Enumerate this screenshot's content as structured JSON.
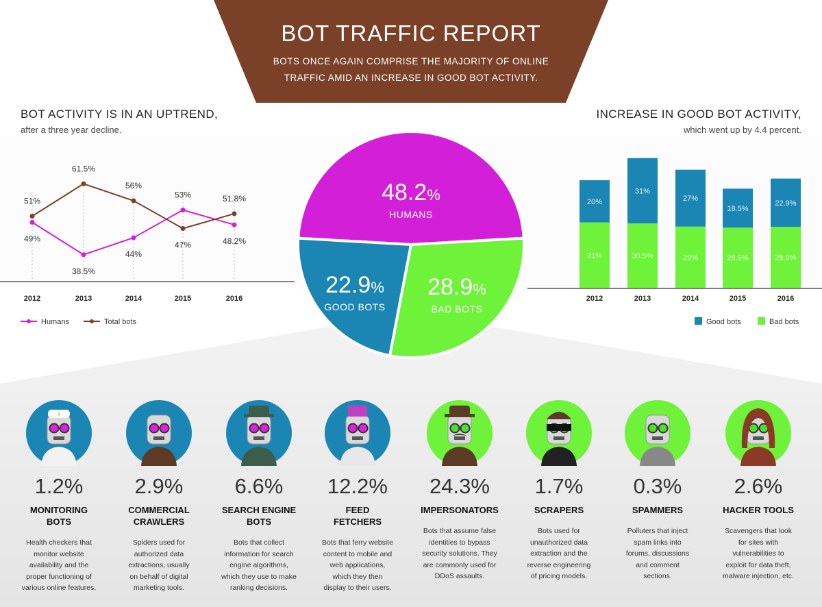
{
  "banner": {
    "title": "BOT TRAFFIC REPORT",
    "subtitle_line1": "BOTS ONCE AGAIN COMPRISE THE MAJORITY OF ONLINE",
    "subtitle_line2": "TRAFFIC AMID AN INCREASE IN GOOD BOT ACTIVITY.",
    "color": "#7a4128"
  },
  "left_section": {
    "heading": "BOT ACTIVITY IS IN AN UPTREND,",
    "subheading": "after a three year decline."
  },
  "right_section": {
    "heading": "INCREASE IN GOOD BOT ACTIVITY,",
    "subheading": "which went up by 4.4 percent."
  },
  "colors": {
    "humans": "#d41fd8",
    "total_bots": "#7b3f2c",
    "good_bots": "#1b86b4",
    "bad_bots": "#6ef23a",
    "brown": "#7a4128"
  },
  "chart_data": [
    {
      "type": "line",
      "x": [
        "2012",
        "2013",
        "2014",
        "2015",
        "2016"
      ],
      "ylim": [
        30,
        70
      ],
      "series": [
        {
          "name": "Humans",
          "values": [
            49,
            38.5,
            44,
            53,
            48.2
          ],
          "labels": [
            "49%",
            "38.5%",
            "44%",
            "53%",
            "48.2%"
          ],
          "color": "#d41fd8"
        },
        {
          "name": "Total bots",
          "values": [
            51,
            61.5,
            56,
            47,
            51.8
          ],
          "labels": [
            "51%",
            "61.5%",
            "56%",
            "47%",
            "51.8%"
          ],
          "color": "#7b3f2c"
        }
      ],
      "legend_placement": "bottom-left"
    },
    {
      "type": "pie",
      "slices": [
        {
          "label": "HUMANS",
          "value": 48.2,
          "display": "48.2",
          "color": "#d41fd8"
        },
        {
          "label": "BAD BOTS",
          "value": 28.9,
          "display": "28.9",
          "color": "#6ef23a"
        },
        {
          "label": "GOOD BOTS",
          "value": 22.9,
          "display": "22.9",
          "color": "#1b86b4"
        }
      ],
      "unit": "%"
    },
    {
      "type": "bar",
      "stacked": true,
      "categories": [
        "2012",
        "2013",
        "2014",
        "2015",
        "2016"
      ],
      "ylim": [
        0,
        65
      ],
      "series": [
        {
          "name": "Bad bots",
          "values": [
            31,
            30.5,
            29,
            28.5,
            28.9
          ],
          "labels": [
            "31%",
            "30.5%",
            "29%",
            "28.5%",
            "28.9%"
          ],
          "color": "#6ef23a"
        },
        {
          "name": "Good bots",
          "values": [
            20,
            31,
            27,
            18.5,
            22.9
          ],
          "labels": [
            "20%",
            "31%",
            "27%",
            "18.5%",
            "22.9%"
          ],
          "color": "#1b86b4"
        }
      ],
      "legend_placement": "bottom-right"
    }
  ],
  "categories": [
    {
      "pct": "1.2%",
      "name_line1": "MONITORING",
      "name_line2": "BOTS",
      "desc": [
        "Health checkers that",
        "monitor website",
        "availability and the",
        "proper functioning of",
        "various online features."
      ],
      "circle_color": "#1b86b4",
      "icon": "doctor-robot-icon"
    },
    {
      "pct": "2.9%",
      "name_line1": "COMMERCIAL",
      "name_line2": "CRAWLERS",
      "desc": [
        "Spiders used for",
        "authorized data",
        "extractions, usually",
        "on behalf of digital",
        "marketing tools."
      ],
      "circle_color": "#1b86b4",
      "icon": "puppet-robot-icon"
    },
    {
      "pct": "6.6%",
      "name_line1": "SEARCH ENGINE",
      "name_line2": "BOTS",
      "desc": [
        "Bots that collect",
        "information for search",
        "engine algorithms,",
        "which they use to make",
        "ranking decisions."
      ],
      "circle_color": "#1b86b4",
      "icon": "detective-robot-icon"
    },
    {
      "pct": "12.2%",
      "name_line1": "FEED",
      "name_line2": "FETCHERS",
      "desc": [
        "Bots that ferry website",
        "content to mobile and",
        "web applications,",
        "which they then",
        "display to their users."
      ],
      "circle_color": "#1b86b4",
      "icon": "bellhop-robot-icon"
    },
    {
      "pct": "24.3%",
      "name_line1": "IMPERSONATORS",
      "name_line2": "",
      "desc": [
        "Bots that assume false",
        "identities to bypass",
        "security solutions. They",
        "are commonly used for",
        "DDoS assaults."
      ],
      "circle_color": "#6ef23a",
      "icon": "mustache-robot-icon"
    },
    {
      "pct": "1.7%",
      "name_line1": "SCRAPERS",
      "name_line2": "",
      "desc": [
        "Bots used for",
        "unauthorized data",
        "extraction and the",
        "reverse engineering",
        "of pricing models."
      ],
      "circle_color": "#6ef23a",
      "icon": "burglar-robot-icon"
    },
    {
      "pct": "0.3%",
      "name_line1": "SPAMMERS",
      "name_line2": "",
      "desc": [
        "Polluters that inject",
        "spam links into",
        "forums, discussions",
        "and comment",
        "sections."
      ],
      "circle_color": "#6ef23a",
      "icon": "zombie-robot-icon"
    },
    {
      "pct": "2.6%",
      "name_line1": "HACKER TOOLS",
      "name_line2": "",
      "desc": [
        "Scavengers that look",
        "for sites with",
        "vulnerabilities to",
        "exploit for data theft,",
        "malware injection, etc."
      ],
      "circle_color": "#6ef23a",
      "icon": "hooded-hacker-robot-icon"
    }
  ]
}
